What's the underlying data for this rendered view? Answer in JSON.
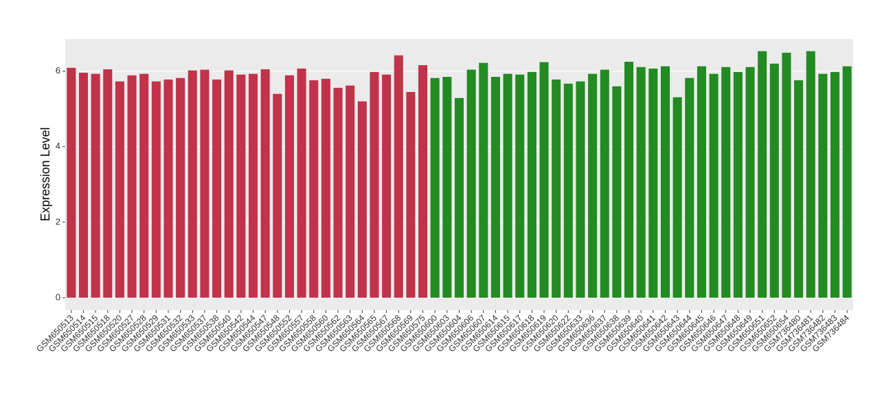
{
  "chart_data": {
    "type": "bar",
    "y_label": "Expression Level",
    "categories": [
      "GSM650513",
      "GSM650514",
      "GSM650515",
      "GSM650518",
      "GSM650520",
      "GSM650527",
      "GSM650528",
      "GSM650529",
      "GSM650531",
      "GSM650532",
      "GSM650533",
      "GSM650537",
      "GSM650538",
      "GSM650540",
      "GSM650542",
      "GSM650544",
      "GSM650547",
      "GSM650548",
      "GSM650552",
      "GSM650557",
      "GSM650558",
      "GSM650560",
      "GSM650562",
      "GSM650563",
      "GSM650564",
      "GSM650565",
      "GSM650567",
      "GSM650568",
      "GSM650569",
      "GSM650575",
      "GSM650600",
      "GSM650603",
      "GSM650604",
      "GSM650606",
      "GSM650607",
      "GSM650614",
      "GSM650615",
      "GSM650617",
      "GSM650618",
      "GSM650619",
      "GSM650620",
      "GSM650622",
      "GSM650633",
      "GSM650636",
      "GSM650637",
      "GSM650638",
      "GSM650639",
      "GSM650640",
      "GSM650641",
      "GSM650642",
      "GSM650643",
      "GSM650644",
      "GSM650645",
      "GSM650646",
      "GSM650647",
      "GSM650648",
      "GSM650649",
      "GSM650651",
      "GSM650652",
      "GSM650654",
      "GSM736480",
      "GSM736481",
      "GSM736482",
      "GSM736483",
      "GSM736484"
    ],
    "values": [
      6.09,
      5.96,
      5.93,
      6.05,
      5.73,
      5.89,
      5.93,
      5.73,
      5.78,
      5.82,
      6.02,
      6.04,
      5.78,
      6.02,
      5.91,
      5.93,
      6.05,
      5.4,
      5.89,
      6.07,
      5.76,
      5.8,
      5.56,
      5.62,
      5.2,
      5.98,
      5.91,
      6.42,
      5.45,
      6.16,
      5.82,
      5.85,
      5.29,
      6.04,
      6.22,
      5.85,
      5.93,
      5.91,
      5.98,
      6.24,
      5.78,
      5.67,
      5.73,
      5.93,
      6.04,
      5.6,
      6.25,
      6.11,
      6.07,
      6.13,
      5.31,
      5.82,
      6.13,
      5.93,
      6.11,
      5.98,
      6.11,
      6.53,
      6.2,
      6.49,
      5.76,
      6.53,
      5.93,
      5.98,
      6.13
    ],
    "colors": [
      "#c0334a",
      "#c0334a",
      "#c0334a",
      "#c0334a",
      "#c0334a",
      "#c0334a",
      "#c0334a",
      "#c0334a",
      "#c0334a",
      "#c0334a",
      "#c0334a",
      "#c0334a",
      "#c0334a",
      "#c0334a",
      "#c0334a",
      "#c0334a",
      "#c0334a",
      "#c0334a",
      "#c0334a",
      "#c0334a",
      "#c0334a",
      "#c0334a",
      "#c0334a",
      "#c0334a",
      "#c0334a",
      "#c0334a",
      "#c0334a",
      "#c0334a",
      "#c0334a",
      "#c0334a",
      "#228b22",
      "#228b22",
      "#228b22",
      "#228b22",
      "#228b22",
      "#228b22",
      "#228b22",
      "#228b22",
      "#228b22",
      "#228b22",
      "#228b22",
      "#228b22",
      "#228b22",
      "#228b22",
      "#228b22",
      "#228b22",
      "#228b22",
      "#228b22",
      "#228b22",
      "#228b22",
      "#228b22",
      "#228b22",
      "#228b22",
      "#228b22",
      "#228b22",
      "#228b22",
      "#228b22",
      "#228b22",
      "#228b22",
      "#228b22",
      "#228b22",
      "#228b22",
      "#228b22",
      "#228b22",
      "#228b22"
    ],
    "ylim": [
      -0.33,
      6.85
    ],
    "yticks": [
      0,
      2,
      4,
      6
    ],
    "grid": true
  }
}
